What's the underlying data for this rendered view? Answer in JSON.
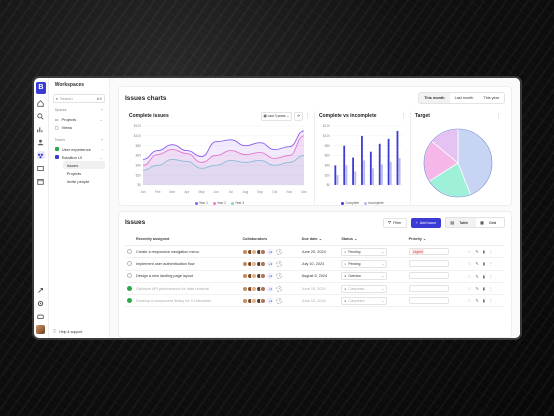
{
  "sidebar": {
    "workspace_title": "Workspaces",
    "search_placeholder": "Search",
    "search_shortcut": "⌘K",
    "spaces_label": "Spaces",
    "spaces_items": [
      {
        "label": "Projects"
      },
      {
        "label": "Views"
      }
    ],
    "teams_label": "Teams",
    "teams": [
      {
        "label": "User experience",
        "color": "#2aa84a"
      },
      {
        "label": "Estallion UI",
        "color": "#3b3bd6"
      }
    ],
    "sub_items": [
      {
        "label": "Issues"
      },
      {
        "label": "Projects"
      },
      {
        "label": "Invite people"
      }
    ],
    "help_label": "Help & support"
  },
  "charts": {
    "section_title": "Issues charts",
    "range_tabs": [
      {
        "label": "This month"
      },
      {
        "label": "Last month"
      },
      {
        "label": "This year"
      }
    ],
    "active_range": "This month"
  },
  "chart_data": [
    {
      "type": "line",
      "title": "Complete issues",
      "filter_label": "Last 3 years",
      "categories": [
        "Jan",
        "Feb",
        "Mar",
        "Apr",
        "May",
        "Jun",
        "Jul",
        "Aug",
        "Sep",
        "Oct",
        "Nov",
        "Dec"
      ],
      "y_ticks": [
        "$120",
        "$100",
        "$80",
        "$60",
        "$40",
        "$20",
        "$0"
      ],
      "ylim": [
        0,
        120
      ],
      "series": [
        {
          "name": "Year 1",
          "color": "#8a5cf0",
          "values": [
            52,
            70,
            82,
            70,
            58,
            88,
            92,
            80,
            86,
            72,
            78,
            110
          ]
        },
        {
          "name": "Year 2",
          "color": "#f07cc8",
          "values": [
            40,
            62,
            72,
            64,
            46,
            60,
            70,
            62,
            66,
            54,
            60,
            100
          ]
        },
        {
          "name": "Year 3",
          "color": "#7fd6d6",
          "values": [
            30,
            40,
            52,
            48,
            34,
            40,
            50,
            46,
            50,
            40,
            46,
            60
          ]
        }
      ]
    },
    {
      "type": "bar",
      "title": "Complete vs incomplete",
      "y_ticks": [
        "$120",
        "$100",
        "$80",
        "$60",
        "$40",
        "$20",
        "$0"
      ],
      "ylim": [
        0,
        120
      ],
      "categories": [
        "1",
        "2",
        "3",
        "4",
        "5",
        "6",
        "7",
        "8"
      ],
      "series": [
        {
          "name": "Complete",
          "color": "#3b3bd6",
          "values": [
            40,
            80,
            56,
            100,
            68,
            84,
            94,
            110
          ]
        },
        {
          "name": "Incomplete",
          "color": "#b9b9f0",
          "values": [
            20,
            40,
            28,
            50,
            34,
            42,
            47,
            55
          ]
        }
      ]
    },
    {
      "type": "pie",
      "title": "Target",
      "slices": [
        {
          "color": "#c7d4f4",
          "value": 44
        },
        {
          "color": "#9ff0d8",
          "value": 22
        },
        {
          "color": "#f5b7e8",
          "value": 20
        },
        {
          "color": "#e4c3f2",
          "value": 14
        }
      ]
    }
  ],
  "issues": {
    "title": "Issues",
    "filter_label": "Filter",
    "add_label": "Add issue",
    "view_table": "Table",
    "view_grid": "Grid",
    "columns": [
      "Recently assigned",
      "Collaborators",
      "Due date",
      "Status",
      "Priority"
    ],
    "rows": [
      {
        "title": "Create a responsive navigation menu",
        "due": "June 20, 2024",
        "status": "Pending",
        "status_color": "#e39b2b",
        "priority": "Urgent",
        "done": false,
        "dim": false
      },
      {
        "title": "Implement user authentication flow",
        "due": "July 10, 2024",
        "status": "Pending",
        "status_color": "#e39b2b",
        "priority": "",
        "done": false,
        "dim": false
      },
      {
        "title": "Design a new landing page layout",
        "due": "August 5, 2024",
        "status": "Overdue",
        "status_color": "#d43a3a",
        "priority": "",
        "done": false,
        "dim": false
      },
      {
        "title": "Optimize API performance for data retrieval",
        "due": "June 15, 2024",
        "status": "Completed",
        "status_color": "#2aa84a",
        "priority": "",
        "done": true,
        "dim": true
      },
      {
        "title": "Develop a component library for UI elements",
        "due": "June 12, 2024",
        "status": "Completed",
        "status_color": "#2aa84a",
        "priority": "",
        "done": true,
        "dim": true
      }
    ],
    "avatar_colors": [
      "#c48a5a",
      "#7a4b2a",
      "#e0b48a",
      "#5b3a26",
      "#a9745a"
    ],
    "more_count": "+3"
  }
}
